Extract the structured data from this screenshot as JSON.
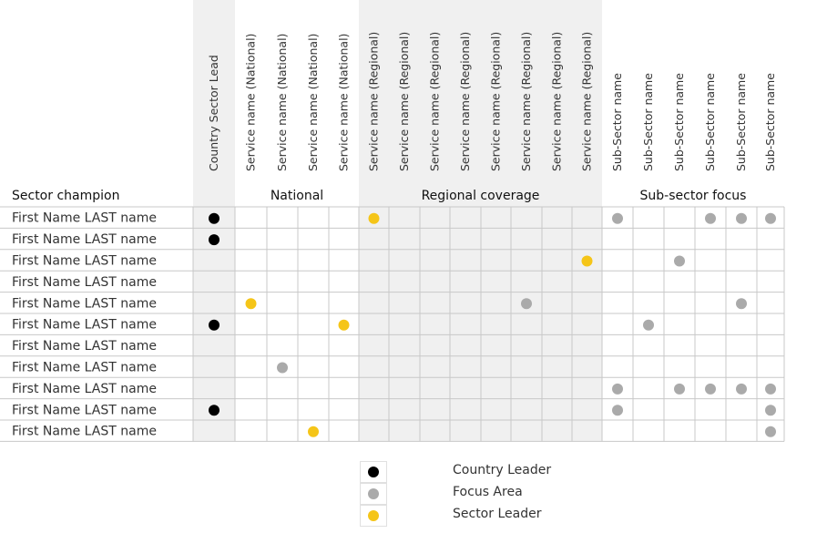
{
  "colors": {
    "country_leader": "#000000",
    "focus_area": "#aaaaaa",
    "sector_leader": "#f5c518",
    "shaded_column": "#f0f0f0",
    "grid_line": "#c8c8c8"
  },
  "row_header": "Sector champion",
  "groups": [
    {
      "label": "",
      "start": 0,
      "end": 0,
      "shaded": true
    },
    {
      "label": "National",
      "start": 1,
      "end": 4,
      "shaded": false
    },
    {
      "label": "Regional coverage",
      "start": 5,
      "end": 12,
      "shaded": true
    },
    {
      "label": "Sub-sector focus",
      "start": 13,
      "end": 18,
      "shaded": false
    }
  ],
  "columns": [
    "Country Sector Lead",
    "Service name (National)",
    "Service name (National)",
    "Service name (National)",
    "Service name (National)",
    "Service name (Regional)",
    "Service name (Regional)",
    "Service name (Regional)",
    "Service name (Regional)",
    "Service name (Regional)",
    "Service name (Regional)",
    "Service name (Regional)",
    "Service name (Regional)",
    "Sub-Sector name",
    "Sub-Sector name",
    "Sub-Sector name",
    "Sub-Sector name",
    "Sub-Sector name",
    "Sub-Sector name"
  ],
  "rows": [
    {
      "name": "First Name LAST name",
      "marks": [
        {
          "col": 0,
          "type": "country_leader"
        },
        {
          "col": 5,
          "type": "sector_leader"
        },
        {
          "col": 13,
          "type": "focus_area"
        },
        {
          "col": 16,
          "type": "focus_area"
        },
        {
          "col": 17,
          "type": "focus_area"
        },
        {
          "col": 18,
          "type": "focus_area"
        }
      ]
    },
    {
      "name": "First Name LAST name",
      "marks": [
        {
          "col": 0,
          "type": "country_leader"
        }
      ]
    },
    {
      "name": "First Name LAST name",
      "marks": [
        {
          "col": 12,
          "type": "sector_leader"
        },
        {
          "col": 15,
          "type": "focus_area"
        }
      ]
    },
    {
      "name": "First Name LAST name",
      "marks": []
    },
    {
      "name": "First Name LAST name",
      "marks": [
        {
          "col": 1,
          "type": "sector_leader"
        },
        {
          "col": 10,
          "type": "focus_area"
        },
        {
          "col": 17,
          "type": "focus_area"
        }
      ]
    },
    {
      "name": "First Name LAST name",
      "marks": [
        {
          "col": 0,
          "type": "country_leader"
        },
        {
          "col": 4,
          "type": "sector_leader"
        },
        {
          "col": 14,
          "type": "focus_area"
        }
      ]
    },
    {
      "name": "First Name LAST name",
      "marks": []
    },
    {
      "name": "First Name LAST name",
      "marks": [
        {
          "col": 2,
          "type": "focus_area"
        }
      ]
    },
    {
      "name": "First Name LAST name",
      "marks": [
        {
          "col": 13,
          "type": "focus_area"
        },
        {
          "col": 15,
          "type": "focus_area"
        },
        {
          "col": 16,
          "type": "focus_area"
        },
        {
          "col": 17,
          "type": "focus_area"
        },
        {
          "col": 18,
          "type": "focus_area"
        }
      ]
    },
    {
      "name": "First Name LAST name",
      "marks": [
        {
          "col": 0,
          "type": "country_leader"
        },
        {
          "col": 13,
          "type": "focus_area"
        },
        {
          "col": 18,
          "type": "focus_area"
        }
      ]
    },
    {
      "name": "First Name LAST name",
      "marks": [
        {
          "col": 3,
          "type": "sector_leader"
        },
        {
          "col": 18,
          "type": "focus_area"
        }
      ]
    }
  ],
  "legend": [
    {
      "type": "country_leader",
      "label": "Country Leader"
    },
    {
      "type": "focus_area",
      "label": "Focus Area"
    },
    {
      "type": "sector_leader",
      "label": "Sector Leader"
    }
  ]
}
